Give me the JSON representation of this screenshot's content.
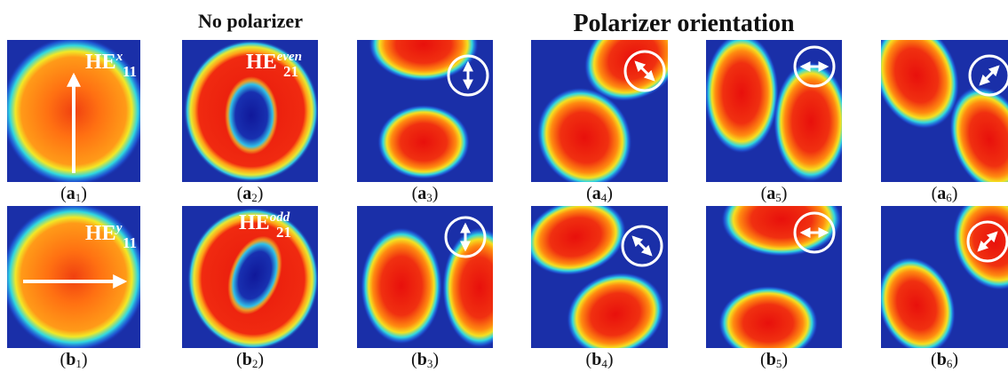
{
  "headers": {
    "no_polarizer": "No polarizer",
    "polarizer": "Polarizer orientation"
  },
  "label_brackets": [
    "(",
    ")"
  ],
  "panels": [
    {
      "letter": "a",
      "sub": "1",
      "mode": {
        "base": "HE",
        "sub": "11",
        "sup": "x"
      }
    },
    {
      "letter": "a",
      "sub": "2",
      "mode": {
        "base": "HE",
        "sub": "21",
        "sup": "even"
      }
    },
    {
      "letter": "a",
      "sub": "3"
    },
    {
      "letter": "a",
      "sub": "4"
    },
    {
      "letter": "a",
      "sub": "5"
    },
    {
      "letter": "a",
      "sub": "6"
    },
    {
      "letter": "b",
      "sub": "1",
      "mode": {
        "base": "HE",
        "sub": "11",
        "sup": "y"
      }
    },
    {
      "letter": "b",
      "sub": "2",
      "mode": {
        "base": "HE",
        "sub": "21",
        "sup": "odd"
      }
    },
    {
      "letter": "b",
      "sub": "3"
    },
    {
      "letter": "b",
      "sub": "4"
    },
    {
      "letter": "b",
      "sub": "5"
    },
    {
      "letter": "b",
      "sub": "6"
    }
  ]
}
